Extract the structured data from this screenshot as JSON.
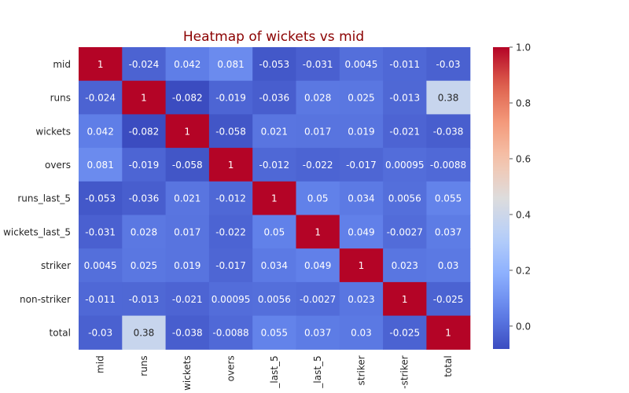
{
  "chart_data": {
    "type": "heatmap",
    "title": "Heatmap of wickets vs mid",
    "title_color": "#8b0000",
    "xlabel": "",
    "ylabel": "",
    "labels": [
      "mid",
      "runs",
      "wickets",
      "overs",
      "runs_last_5",
      "wickets_last_5",
      "striker",
      "non-striker",
      "total"
    ],
    "x_tick_labels_displayed": [
      "mid",
      "runs",
      "wickets",
      "overs",
      "_last_5",
      "_last_5",
      "striker",
      "-striker",
      "total"
    ],
    "values": [
      [
        1,
        -0.024,
        0.042,
        0.081,
        -0.053,
        -0.031,
        0.0045,
        -0.011,
        -0.03
      ],
      [
        -0.024,
        1,
        -0.082,
        -0.019,
        -0.036,
        0.028,
        0.025,
        -0.013,
        0.38
      ],
      [
        0.042,
        -0.082,
        1,
        -0.058,
        0.021,
        0.017,
        0.019,
        -0.021,
        -0.038
      ],
      [
        0.081,
        -0.019,
        -0.058,
        1,
        -0.012,
        -0.022,
        -0.017,
        0.00095,
        -0.0088
      ],
      [
        -0.053,
        -0.036,
        0.021,
        -0.012,
        1,
        0.05,
        0.034,
        0.0056,
        0.055
      ],
      [
        -0.031,
        0.028,
        0.017,
        -0.022,
        0.05,
        1,
        0.049,
        -0.0027,
        0.037
      ],
      [
        0.0045,
        0.025,
        0.019,
        -0.017,
        0.034,
        0.049,
        1,
        0.023,
        0.03
      ],
      [
        -0.011,
        -0.013,
        -0.021,
        0.00095,
        0.0056,
        -0.0027,
        0.023,
        1,
        -0.025
      ],
      [
        -0.03,
        0.38,
        -0.038,
        -0.0088,
        0.055,
        0.037,
        0.03,
        -0.025,
        1
      ]
    ],
    "annotations": [
      [
        "1",
        "-0.024",
        "0.042",
        "0.081",
        "-0.053",
        "-0.031",
        "0.0045",
        "-0.011",
        "-0.03"
      ],
      [
        "-0.024",
        "1",
        "-0.082",
        "-0.019",
        "-0.036",
        "0.028",
        "0.025",
        "-0.013",
        "0.38"
      ],
      [
        "0.042",
        "-0.082",
        "1",
        "-0.058",
        "0.021",
        "0.017",
        "0.019",
        "-0.021",
        "-0.038"
      ],
      [
        "0.081",
        "-0.019",
        "-0.058",
        "1",
        "-0.012",
        "-0.022",
        "-0.017",
        "0.00095",
        "-0.0088"
      ],
      [
        "-0.053",
        "-0.036",
        "0.021",
        "-0.012",
        "1",
        "0.05",
        "0.034",
        "0.0056",
        "0.055"
      ],
      [
        "-0.031",
        "0.028",
        "0.017",
        "-0.022",
        "0.05",
        "1",
        "0.049",
        "-0.0027",
        "0.037"
      ],
      [
        "0.0045",
        "0.025",
        "0.019",
        "-0.017",
        "0.034",
        "0.049",
        "1",
        "0.023",
        "0.03"
      ],
      [
        "-0.011",
        "-0.013",
        "-0.021",
        "0.00095",
        "0.0056",
        "-0.0027",
        "0.023",
        "1",
        "-0.025"
      ],
      [
        "-0.03",
        "0.38",
        "-0.038",
        "-0.0088",
        "0.055",
        "0.037",
        "0.03",
        "-0.025",
        "1"
      ]
    ],
    "colormap": "coolwarm",
    "vmin": -0.082,
    "vmax": 1,
    "colorbar_ticks": [
      0.0,
      0.2,
      0.4,
      0.6,
      0.8,
      1.0
    ],
    "colorbar_tick_labels": [
      "0.0",
      "0.2",
      "0.4",
      "0.6",
      "0.8",
      "1.0"
    ],
    "grid": false,
    "legend": "colorbar-right"
  }
}
